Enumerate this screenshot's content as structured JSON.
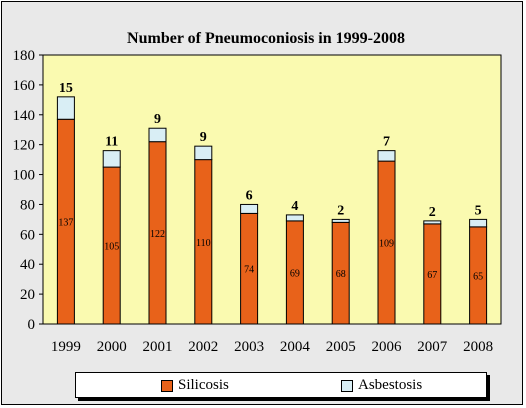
{
  "chart_data": {
    "type": "bar",
    "stacked": true,
    "title": "Number of Pneumoconiosis in 1999-2008",
    "categories": [
      "1999",
      "2000",
      "2001",
      "2002",
      "2003",
      "2004",
      "2005",
      "2006",
      "2007",
      "2008"
    ],
    "series": [
      {
        "name": "Silicosis",
        "color": "#e8621a",
        "values": [
          137,
          105,
          122,
          110,
          74,
          69,
          68,
          109,
          67,
          65
        ]
      },
      {
        "name": "Asbestosis",
        "color": "#d9eef5",
        "values": [
          15,
          11,
          9,
          9,
          6,
          4,
          2,
          7,
          2,
          5
        ]
      }
    ],
    "ylim": [
      0,
      180
    ],
    "yticks": [
      0,
      20,
      40,
      60,
      80,
      100,
      120,
      140,
      160,
      180
    ],
    "plot_background": "#fafab0",
    "legend_position": "bottom",
    "grid": false
  }
}
